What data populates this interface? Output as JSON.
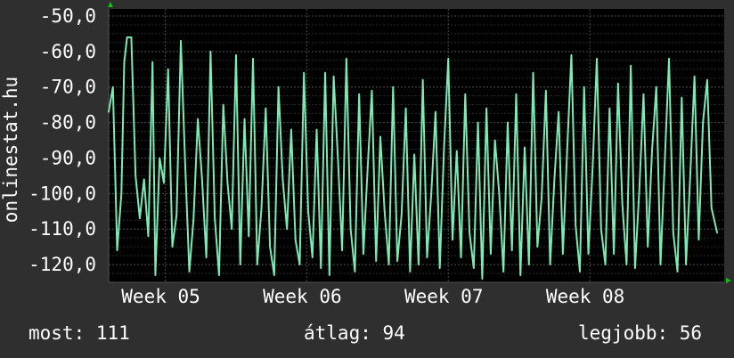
{
  "chart_data": {
    "type": "line",
    "title": "",
    "xlabel": "",
    "ylabel": "onlinestat.hu",
    "ylim": [
      -125,
      -48
    ],
    "y_ticks": [
      "-50,0",
      "-60,0",
      "-70,0",
      "-80,0",
      "-90,0",
      "-100,0",
      "-110,0",
      "-120,0"
    ],
    "y_tick_values": [
      -50,
      -60,
      -70,
      -80,
      -90,
      -100,
      -110,
      -120
    ],
    "x_ticks": [
      "Week 05",
      "Week 06",
      "Week 07",
      "Week 08"
    ],
    "xlim": [
      4.6,
      8.95
    ],
    "x_tick_values": [
      5,
      6,
      7,
      8
    ],
    "grid": true,
    "colors": {
      "background": "#2f2f2f",
      "plot": "#000000",
      "line": "#7deab4",
      "grid": "#4a4a4a",
      "text": "#ffffff",
      "arrow": "#00cc00"
    },
    "series": [
      {
        "x": [
          4.6,
          4.63,
          4.66,
          4.69,
          4.71,
          4.73,
          4.76,
          4.79,
          4.82,
          4.85,
          4.88,
          4.91,
          4.93,
          4.96,
          4.99,
          5.02,
          5.05,
          5.08,
          5.11,
          5.14,
          5.17,
          5.2,
          5.23,
          5.26,
          5.29,
          5.32,
          5.35,
          5.38,
          5.41,
          5.44,
          5.47,
          5.5,
          5.53,
          5.56,
          5.59,
          5.62,
          5.65,
          5.68,
          5.71,
          5.74,
          5.77,
          5.8,
          5.83,
          5.86,
          5.89,
          5.92,
          5.95,
          5.98,
          6.01,
          6.04,
          6.07,
          6.1,
          6.13,
          6.16,
          6.19,
          6.22,
          6.25,
          6.28,
          6.31,
          6.34,
          6.37,
          6.4,
          6.43,
          6.46,
          6.49,
          6.52,
          6.55,
          6.58,
          6.61,
          6.64,
          6.67,
          6.7,
          6.73,
          6.76,
          6.79,
          6.82,
          6.85,
          6.88,
          6.91,
          6.94,
          6.97,
          7.0,
          7.03,
          7.06,
          7.09,
          7.12,
          7.15,
          7.18,
          7.21,
          7.24,
          7.27,
          7.3,
          7.33,
          7.36,
          7.39,
          7.42,
          7.45,
          7.48,
          7.51,
          7.54,
          7.57,
          7.6,
          7.63,
          7.66,
          7.69,
          7.72,
          7.75,
          7.78,
          7.81,
          7.84,
          7.87,
          7.9,
          7.93,
          7.96,
          7.99,
          8.02,
          8.05,
          8.08,
          8.11,
          8.14,
          8.17,
          8.2,
          8.23,
          8.26,
          8.29,
          8.32,
          8.35,
          8.38,
          8.41,
          8.44,
          8.47,
          8.5,
          8.53,
          8.56,
          8.59,
          8.62,
          8.65,
          8.68,
          8.71,
          8.74,
          8.77,
          8.8,
          8.83,
          8.86,
          8.9
        ],
        "values": [
          -77,
          -70,
          -116,
          -100,
          -63,
          -56,
          -56,
          -95,
          -107,
          -96,
          -112,
          -63,
          -123,
          -90,
          -97,
          -65,
          -115,
          -106,
          -57,
          -91,
          -122,
          -107,
          -79,
          -96,
          -118,
          -60,
          -107,
          -123,
          -75,
          -97,
          -110,
          -61,
          -120,
          -79,
          -112,
          -62,
          -120,
          -104,
          -76,
          -115,
          -123,
          -70,
          -96,
          -110,
          -82,
          -113,
          -120,
          -66,
          -105,
          -118,
          -82,
          -121,
          -66,
          -123,
          -67,
          -90,
          -116,
          -62,
          -110,
          -122,
          -72,
          -117,
          -93,
          -71,
          -119,
          -84,
          -105,
          -120,
          -70,
          -119,
          -106,
          -76,
          -122,
          -89,
          -120,
          -68,
          -118,
          -100,
          -77,
          -121,
          -87,
          -62,
          -113,
          -88,
          -118,
          -72,
          -111,
          -121,
          -80,
          -124,
          -76,
          -117,
          -85,
          -100,
          -122,
          -80,
          -116,
          -72,
          -123,
          -87,
          -120,
          -66,
          -115,
          -101,
          -71,
          -120,
          -96,
          -77,
          -117,
          -88,
          -61,
          -109,
          -122,
          -70,
          -117,
          -93,
          -62,
          -110,
          -120,
          -76,
          -117,
          -69,
          -103,
          -120,
          -64,
          -121,
          -99,
          -72,
          -115,
          -88,
          -70,
          -120,
          -91,
          -62,
          -111,
          -122,
          -73,
          -120,
          -95,
          -67,
          -113,
          -80,
          -68,
          -104,
          -111
        ]
      }
    ],
    "stats": {
      "now": "most: 111",
      "avg": "átlag: 94",
      "best": "legjobb: 56"
    }
  }
}
